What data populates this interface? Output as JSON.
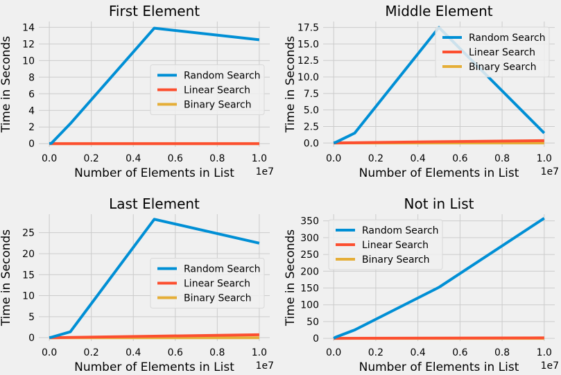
{
  "colors": {
    "background": "#f0f0f0",
    "grid": "#cbcbcb",
    "series": [
      "#008fd5",
      "#fc4f30",
      "#e5ae38"
    ]
  },
  "chart_data": [
    {
      "type": "line",
      "title": "First Element",
      "xlabel": "Number of Elements in List",
      "ylabel": "Time in Seconds",
      "x_offset_label": "1e7",
      "x": [
        0.0,
        0.01,
        0.1,
        0.5,
        1.0
      ],
      "xlim": [
        -0.05,
        1.05
      ],
      "ylim": [
        -0.4,
        14.7
      ],
      "xticks": [
        0.0,
        0.2,
        0.4,
        0.6,
        0.8,
        1.0
      ],
      "xtick_labels": [
        "0.0",
        "0.2",
        "0.4",
        "0.6",
        "0.8",
        "1.0"
      ],
      "yticks": [
        0,
        2,
        4,
        6,
        8,
        10,
        12,
        14
      ],
      "ytick_labels": [
        "0",
        "2",
        "4",
        "6",
        "8",
        "10",
        "12",
        "14"
      ],
      "legend_position": "center-right",
      "series": [
        {
          "name": "Random Search",
          "values": [
            0.0,
            0.05,
            2.4,
            13.9,
            12.5
          ]
        },
        {
          "name": "Linear Search",
          "values": [
            0.0,
            0.0,
            0.0,
            0.0,
            0.0
          ]
        },
        {
          "name": "Binary Search",
          "values": [
            0.0,
            0.0,
            0.0,
            0.0,
            0.0
          ]
        }
      ]
    },
    {
      "type": "line",
      "title": "Middle Element",
      "xlabel": "Number of Elements in List",
      "ylabel": "Time in Seconds",
      "x_offset_label": "1e7",
      "x": [
        0.0,
        0.01,
        0.1,
        0.5,
        1.0
      ],
      "xlim": [
        -0.05,
        1.05
      ],
      "ylim": [
        -0.6,
        18.4
      ],
      "xticks": [
        0.0,
        0.2,
        0.4,
        0.6,
        0.8,
        1.0
      ],
      "xtick_labels": [
        "0.0",
        "0.2",
        "0.4",
        "0.6",
        "0.8",
        "1.0"
      ],
      "yticks": [
        0.0,
        2.5,
        5.0,
        7.5,
        10.0,
        12.5,
        15.0,
        17.5
      ],
      "ytick_labels": [
        "0.0",
        "2.5",
        "5.0",
        "7.5",
        "10.0",
        "12.5",
        "15.0",
        "17.5"
      ],
      "legend_position": "top-right",
      "series": [
        {
          "name": "Random Search",
          "values": [
            0.0,
            0.1,
            1.5,
            17.5,
            1.5
          ]
        },
        {
          "name": "Linear Search",
          "values": [
            0.0,
            0.0,
            0.04,
            0.2,
            0.35
          ]
        },
        {
          "name": "Binary Search",
          "values": [
            0.0,
            0.0,
            0.0,
            0.0,
            0.0
          ]
        }
      ]
    },
    {
      "type": "line",
      "title": "Last Element",
      "xlabel": "Number of Elements in List",
      "ylabel": "Time in Seconds",
      "x_offset_label": "1e7",
      "x": [
        0.0,
        0.01,
        0.1,
        0.5,
        1.0
      ],
      "xlim": [
        -0.05,
        1.05
      ],
      "ylim": [
        -0.8,
        29.4
      ],
      "xticks": [
        0.0,
        0.2,
        0.4,
        0.6,
        0.8,
        1.0
      ],
      "xtick_labels": [
        "0.0",
        "0.2",
        "0.4",
        "0.6",
        "0.8",
        "1.0"
      ],
      "yticks": [
        0,
        5,
        10,
        15,
        20,
        25
      ],
      "ytick_labels": [
        "0",
        "5",
        "10",
        "15",
        "20",
        "25"
      ],
      "legend_position": "center-right",
      "series": [
        {
          "name": "Random Search",
          "values": [
            0.0,
            0.1,
            1.4,
            28.2,
            22.5
          ]
        },
        {
          "name": "Linear Search",
          "values": [
            0.0,
            0.0,
            0.06,
            0.35,
            0.7
          ]
        },
        {
          "name": "Binary Search",
          "values": [
            0.0,
            0.0,
            0.0,
            0.0,
            0.0
          ]
        }
      ]
    },
    {
      "type": "line",
      "title": "Not in List",
      "xlabel": "Number of Elements in List",
      "ylabel": "Time in Seconds",
      "x_offset_label": "1e7",
      "x": [
        0.0,
        0.01,
        0.1,
        0.5,
        1.0
      ],
      "xlim": [
        -0.05,
        1.05
      ],
      "ylim": [
        -8,
        370
      ],
      "xticks": [
        0.0,
        0.2,
        0.4,
        0.6,
        0.8,
        1.0
      ],
      "xtick_labels": [
        "0.0",
        "0.2",
        "0.4",
        "0.6",
        "0.8",
        "1.0"
      ],
      "yticks": [
        0,
        50,
        100,
        150,
        200,
        250,
        300,
        350
      ],
      "ytick_labels": [
        "0",
        "50",
        "100",
        "150",
        "200",
        "250",
        "300",
        "350"
      ],
      "legend_position": "top-left",
      "series": [
        {
          "name": "Random Search",
          "values": [
            0.0,
            3.5,
            25.0,
            152.0,
            358.0
          ]
        },
        {
          "name": "Linear Search",
          "values": [
            0.0,
            0.0,
            0.2,
            0.8,
            1.5
          ]
        },
        {
          "name": "Binary Search",
          "values": [
            0.0,
            0.0,
            0.0,
            0.0,
            0.0
          ]
        }
      ]
    }
  ]
}
